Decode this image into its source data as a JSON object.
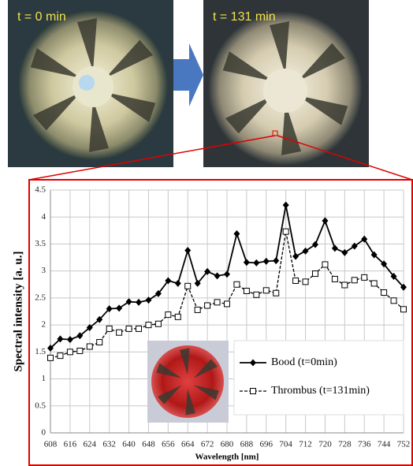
{
  "chart_data": {
    "type": "line",
    "annotations": [
      "t = 0 min",
      "t = 131 min"
    ],
    "x_label": "Wavelength [nm]",
    "y_label": "Spectral intensity [a. u.]",
    "x": [
      608,
      612,
      616,
      620,
      624,
      628,
      632,
      636,
      640,
      644,
      648,
      652,
      656,
      660,
      664,
      668,
      672,
      676,
      680,
      684,
      688,
      692,
      696,
      700,
      704,
      708,
      712,
      716,
      720,
      724,
      728,
      732,
      736,
      740,
      744,
      748,
      752
    ],
    "series": [
      {
        "name": "Bood (t=0min)",
        "color": "#000000",
        "marker": "diamond",
        "dash": false,
        "values": [
          1.57,
          1.74,
          1.73,
          1.8,
          1.95,
          2.1,
          2.3,
          2.31,
          2.43,
          2.42,
          2.46,
          2.58,
          2.82,
          2.77,
          3.38,
          2.77,
          2.99,
          2.91,
          2.94,
          3.69,
          3.16,
          3.15,
          3.18,
          3.19,
          4.22,
          3.27,
          3.37,
          3.49,
          3.93,
          3.42,
          3.34,
          3.46,
          3.59,
          3.3,
          3.13,
          2.9,
          2.7
        ]
      },
      {
        "name": "Thrombus (t=131min)",
        "color": "#000000",
        "marker": "square",
        "dash": true,
        "values": [
          1.39,
          1.43,
          1.5,
          1.52,
          1.6,
          1.68,
          1.93,
          1.86,
          1.93,
          1.93,
          2.0,
          2.02,
          2.19,
          2.15,
          2.72,
          2.28,
          2.36,
          2.42,
          2.39,
          2.75,
          2.63,
          2.56,
          2.64,
          2.59,
          3.73,
          2.82,
          2.8,
          2.95,
          3.12,
          2.85,
          2.74,
          2.83,
          2.88,
          2.77,
          2.6,
          2.45,
          2.29
        ]
      }
    ],
    "xlim": [
      608,
      752
    ],
    "xticks": [
      608,
      616,
      624,
      632,
      640,
      648,
      656,
      664,
      672,
      680,
      688,
      696,
      704,
      712,
      720,
      728,
      736,
      744,
      752
    ],
    "ylim": [
      0,
      4.5
    ],
    "yticks": [
      0,
      0.5,
      1,
      1.5,
      2,
      2.5,
      3,
      3.5,
      4,
      4.5
    ],
    "grid": true
  }
}
